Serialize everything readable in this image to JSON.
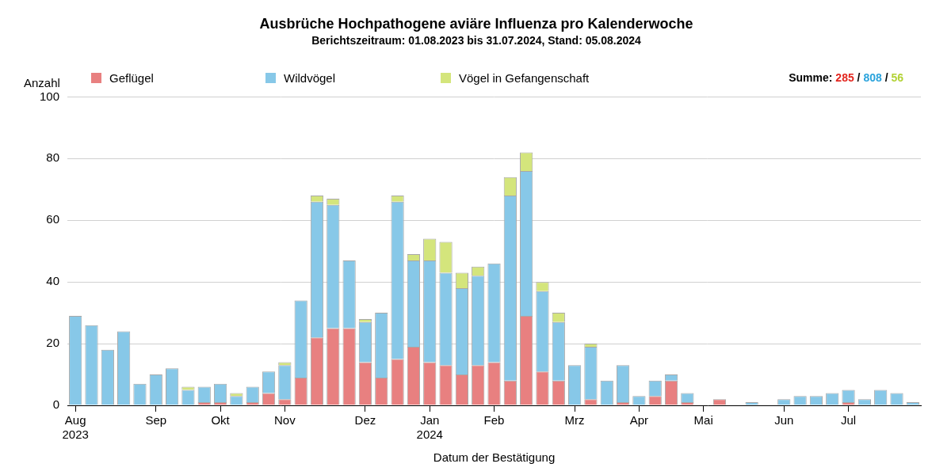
{
  "chart_data": {
    "type": "bar",
    "title": "Ausbrüche Hochpathogene aviäre Influenza pro Kalenderwoche",
    "subtitle": "Berichtszeitraum: 01.08.2023 bis 31.07.2024, Stand: 05.08.2024",
    "y_label": "Anzahl",
    "x_label": "Datum der Bestätigung",
    "categories": [
      "Aug\n2023",
      null,
      null,
      null,
      null,
      "Sep",
      null,
      null,
      null,
      "Okt",
      null,
      null,
      null,
      "Nov",
      null,
      null,
      null,
      null,
      "Dez",
      null,
      null,
      null,
      "Jan\n2024",
      null,
      null,
      null,
      "Feb",
      null,
      null,
      null,
      null,
      "Mrz",
      null,
      null,
      null,
      "Apr",
      null,
      null,
      null,
      "Mai",
      null,
      null,
      null,
      null,
      "Jun",
      null,
      null,
      null,
      "Jul",
      null,
      null,
      null,
      null
    ],
    "series": [
      {
        "name": "Geflügel",
        "color": "#e88080",
        "values": [
          0,
          0,
          0,
          0,
          0,
          0,
          0,
          0,
          1,
          1,
          0,
          1,
          4,
          2,
          9,
          22,
          25,
          25,
          14,
          9,
          15,
          19,
          14,
          13,
          10,
          13,
          14,
          8,
          29,
          11,
          8,
          0,
          2,
          0,
          1,
          0,
          3,
          8,
          1,
          0,
          2,
          0,
          0,
          0,
          0,
          0,
          0,
          0,
          1,
          0,
          0,
          0,
          0
        ]
      },
      {
        "name": "Wildvögel",
        "color": "#87c8e8",
        "values": [
          29,
          26,
          18,
          24,
          7,
          10,
          12,
          5,
          5,
          6,
          3,
          5,
          7,
          11,
          25,
          44,
          40,
          22,
          13,
          21,
          51,
          28,
          33,
          30,
          28,
          29,
          32,
          60,
          47,
          26,
          19,
          13,
          17,
          8,
          12,
          3,
          5,
          2,
          3,
          0,
          0,
          0,
          1,
          0,
          2,
          3,
          3,
          4,
          4,
          2,
          5,
          4,
          1
        ]
      },
      {
        "name": "Vögel in Gefangenschaft",
        "color": "#d4e57c",
        "values": [
          0,
          0,
          0,
          0,
          0,
          0,
          0,
          1,
          0,
          0,
          1,
          0,
          0,
          1,
          0,
          2,
          2,
          0,
          1,
          0,
          2,
          2,
          7,
          10,
          5,
          3,
          0,
          6,
          6,
          3,
          3,
          0,
          1,
          0,
          0,
          0,
          0,
          0,
          0,
          0,
          0,
          0,
          0,
          0,
          0,
          0,
          0,
          0,
          0,
          0,
          0,
          0,
          0
        ]
      }
    ],
    "totals": {
      "label": "Summe:",
      "separator": "/",
      "values": [
        285,
        808,
        56
      ],
      "colors": [
        "#e3261f",
        "#2aa3dc",
        "#b2d235"
      ]
    },
    "ylim": [
      0,
      100
    ],
    "yticks": [
      0,
      20,
      40,
      60,
      80,
      100
    ],
    "stacked": true,
    "grid": true,
    "legend": "top"
  }
}
